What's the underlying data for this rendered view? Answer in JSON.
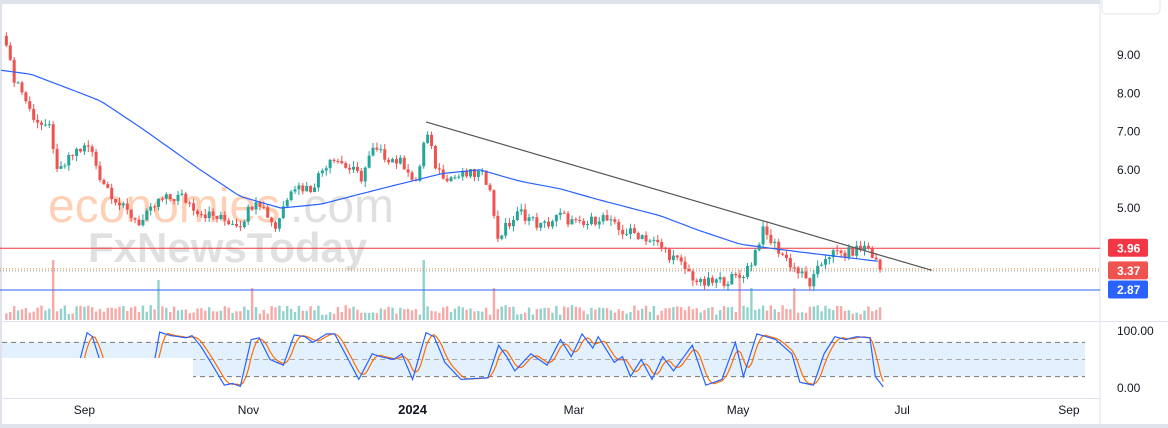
{
  "colors": {
    "up": "#26a69a",
    "down": "#ef5350",
    "ma": "#2962ff",
    "trend": "#555555",
    "resistance": "#f23645",
    "support": "#2962ff",
    "stoch_k": "#2962ff",
    "stoch_d": "#ff6d00",
    "band": "#e3f0fd"
  },
  "watermark": {
    "brand1": "economies",
    "brand1_suffix": ".com",
    "brand2": "FxNewsToday"
  },
  "chart_data": {
    "type": "candlestick",
    "x_unit": "days since 2023-08-01",
    "price_axis": {
      "ticks": [
        "9.00",
        "8.00",
        "7.00",
        "6.00",
        "5.00"
      ],
      "tick_values": [
        9,
        8,
        7,
        6,
        5
      ]
    },
    "time_axis": {
      "ticks": [
        {
          "label": "Sep",
          "day": 31
        },
        {
          "label": "Nov",
          "day": 92
        },
        {
          "label": "2024",
          "day": 153,
          "bold": true
        },
        {
          "label": "Mar",
          "day": 213
        },
        {
          "label": "May",
          "day": 274
        },
        {
          "label": "Jul",
          "day": 335
        },
        {
          "label": "Sep",
          "day": 397
        }
      ]
    },
    "price_path": [
      [
        2,
        9.4
      ],
      [
        4,
        8.5
      ],
      [
        7,
        8.2
      ],
      [
        11,
        7.5
      ],
      [
        17,
        7.0
      ],
      [
        19,
        7.2
      ],
      [
        20,
        5.8
      ],
      [
        28,
        6.5
      ],
      [
        33,
        6.6
      ],
      [
        37,
        5.8
      ],
      [
        45,
        5.0
      ],
      [
        52,
        4.6
      ],
      [
        59,
        5.2
      ],
      [
        67,
        5.3
      ],
      [
        74,
        4.9
      ],
      [
        82,
        4.7
      ],
      [
        89,
        4.6
      ],
      [
        95,
        5.3
      ],
      [
        102,
        4.5
      ],
      [
        108,
        5.6
      ],
      [
        115,
        5.5
      ],
      [
        123,
        6.4
      ],
      [
        128,
        6.1
      ],
      [
        134,
        5.8
      ],
      [
        138,
        6.5
      ],
      [
        145,
        6.3
      ],
      [
        151,
        6.1
      ],
      [
        154,
        5.5
      ],
      [
        158,
        7.0
      ],
      [
        162,
        6.0
      ],
      [
        167,
        5.8
      ],
      [
        178,
        5.9
      ],
      [
        182,
        5.6
      ],
      [
        184,
        4.2
      ],
      [
        193,
        4.9
      ],
      [
        201,
        4.5
      ],
      [
        208,
        4.8
      ],
      [
        216,
        4.5
      ],
      [
        223,
        4.8
      ],
      [
        230,
        4.4
      ],
      [
        238,
        4.3
      ],
      [
        245,
        4.0
      ],
      [
        253,
        3.5
      ],
      [
        260,
        3.0
      ],
      [
        268,
        3.1
      ],
      [
        275,
        3.2
      ],
      [
        279,
        3.6
      ],
      [
        283,
        4.4
      ],
      [
        288,
        4.0
      ],
      [
        294,
        3.5
      ],
      [
        301,
        3.0
      ],
      [
        307,
        3.8
      ],
      [
        314,
        3.8
      ],
      [
        322,
        4.0
      ],
      [
        327,
        3.37
      ]
    ],
    "moving_average": [
      [
        0,
        8.6
      ],
      [
        11,
        8.5
      ],
      [
        26,
        8.1
      ],
      [
        37,
        7.8
      ],
      [
        52,
        7.1
      ],
      [
        74,
        6.0
      ],
      [
        89,
        5.3
      ],
      [
        104,
        5.0
      ],
      [
        119,
        5.1
      ],
      [
        141,
        5.5
      ],
      [
        164,
        5.9
      ],
      [
        178,
        6.0
      ],
      [
        193,
        5.7
      ],
      [
        208,
        5.5
      ],
      [
        223,
        5.2
      ],
      [
        245,
        4.8
      ],
      [
        260,
        4.4
      ],
      [
        275,
        4.05
      ],
      [
        297,
        3.85
      ],
      [
        327,
        3.6
      ]
    ],
    "trendline": {
      "from": [
        158,
        7.25
      ],
      "to": [
        346,
        3.37
      ]
    },
    "levels": [
      {
        "name": "resistance",
        "value": 3.96,
        "label": "3.96"
      },
      {
        "name": "last-price",
        "value": 3.37,
        "label": "3.37"
      },
      {
        "name": "support",
        "value": 2.87,
        "label": "2.87"
      }
    ],
    "volume_spikes": [
      [
        20,
        60
      ],
      [
        58,
        40
      ],
      [
        94,
        32
      ],
      [
        157,
        60
      ],
      [
        183,
        32
      ],
      [
        275,
        50
      ],
      [
        279,
        32
      ],
      [
        295,
        32
      ]
    ],
    "stochastic": {
      "axis_ticks": [
        "100.00",
        "0.00"
      ],
      "levels": [
        80,
        50,
        20
      ],
      "k": [
        [
          28,
          25
        ],
        [
          32,
          97
        ],
        [
          34,
          90
        ],
        [
          38,
          30
        ],
        [
          56,
          20
        ],
        [
          59,
          98
        ],
        [
          63,
          92
        ],
        [
          69,
          88
        ],
        [
          71,
          92
        ],
        [
          74,
          75
        ],
        [
          78,
          45
        ],
        [
          83,
          5
        ],
        [
          86,
          8
        ],
        [
          89,
          3
        ],
        [
          93,
          85
        ],
        [
          96,
          88
        ],
        [
          100,
          50
        ],
        [
          105,
          40
        ],
        [
          109,
          93
        ],
        [
          113,
          90
        ],
        [
          116,
          80
        ],
        [
          121,
          95
        ],
        [
          124,
          95
        ],
        [
          128,
          60
        ],
        [
          133,
          15
        ],
        [
          138,
          60
        ],
        [
          141,
          55
        ],
        [
          146,
          50
        ],
        [
          149,
          60
        ],
        [
          153,
          15
        ],
        [
          158,
          97
        ],
        [
          161,
          90
        ],
        [
          165,
          45
        ],
        [
          171,
          15
        ],
        [
          177,
          17
        ],
        [
          181,
          18
        ],
        [
          185,
          75
        ],
        [
          188,
          55
        ],
        [
          191,
          30
        ],
        [
          197,
          60
        ],
        [
          203,
          40
        ],
        [
          208,
          85
        ],
        [
          212,
          55
        ],
        [
          216,
          95
        ],
        [
          220,
          70
        ],
        [
          222,
          90
        ],
        [
          228,
          45
        ],
        [
          231,
          55
        ],
        [
          234,
          20
        ],
        [
          238,
          50
        ],
        [
          242,
          15
        ],
        [
          246,
          55
        ],
        [
          250,
          30
        ],
        [
          257,
          75
        ],
        [
          262,
          5
        ],
        [
          268,
          15
        ],
        [
          273,
          80
        ],
        [
          276,
          20
        ],
        [
          281,
          95
        ],
        [
          288,
          85
        ],
        [
          294,
          60
        ],
        [
          297,
          10
        ],
        [
          302,
          5
        ],
        [
          306,
          60
        ],
        [
          310,
          90
        ],
        [
          314,
          85
        ],
        [
          318,
          90
        ],
        [
          323,
          88
        ],
        [
          325,
          20
        ],
        [
          328,
          2
        ]
      ]
    }
  }
}
